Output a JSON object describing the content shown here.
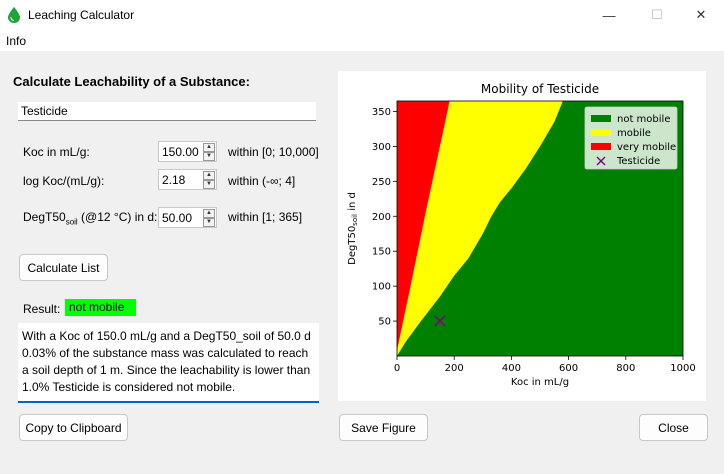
{
  "window": {
    "title": "Leaching Calculator",
    "min_glyph": "—",
    "max_glyph": "☐",
    "close_glyph": "✕"
  },
  "menu": {
    "info": "Info"
  },
  "form": {
    "heading": "Calculate Leachability of a Substance:",
    "substance_name": "Testicide",
    "koc": {
      "label": "Koc in mL/g:",
      "value": "150.00",
      "range": "within [0; 10,000]"
    },
    "log_koc": {
      "label": "log Koc/(mL/g):",
      "value": "2.18",
      "range": "within (-∞; 4]"
    },
    "degt50": {
      "label_main": "DegT50",
      "label_sub": "soil",
      "label_rest": " (@12 °C) in d:",
      "value": "50.00",
      "range": "within [1; 365]"
    },
    "calculate_list_label": "Calculate List"
  },
  "result": {
    "label": "Result:",
    "classification": "not mobile",
    "classification_color": "#00ff00",
    "text": "With a Koc of 150.0 mL/g and a DegT50_soil of 50.0 d 0.03% of the substance mass was calculated to reach a soil depth of 1 m. Since the leachability is lower than 1.0% Testicide is considered not mobile."
  },
  "buttons": {
    "copy": "Copy to Clipboard",
    "save_figure": "Save Figure",
    "close": "Close"
  },
  "chart_data": {
    "type": "area",
    "title": "Mobility of Testicide",
    "xlabel": "Koc in mL/g",
    "ylabel_main": "DegT50",
    "ylabel_sub": "soil",
    "ylabel_rest": " in d",
    "xlim": [
      0,
      1000
    ],
    "ylim": [
      0,
      365
    ],
    "xticks": [
      0,
      200,
      400,
      600,
      800,
      1000
    ],
    "yticks": [
      50,
      100,
      150,
      200,
      250,
      300,
      350
    ],
    "regions": [
      {
        "name": "not mobile",
        "color": "#008000"
      },
      {
        "name": "mobile",
        "color": "#ffff00"
      },
      {
        "name": "very mobile",
        "color": "#ff0000"
      }
    ],
    "boundary_very_mobile": [
      [
        0,
        8
      ],
      [
        50,
        105
      ],
      [
        100,
        205
      ],
      [
        150,
        300
      ],
      [
        184,
        365
      ]
    ],
    "boundary_mobile": [
      [
        0,
        0
      ],
      [
        30,
        20
      ],
      [
        80,
        48
      ],
      [
        150,
        85
      ],
      [
        200,
        115
      ],
      [
        250,
        140
      ],
      [
        300,
        175
      ],
      [
        330,
        200
      ],
      [
        360,
        220
      ],
      [
        400,
        240
      ],
      [
        450,
        268
      ],
      [
        500,
        300
      ],
      [
        550,
        335
      ],
      [
        580,
        365
      ]
    ],
    "point": {
      "name": "Testicide",
      "x": 150,
      "y": 50,
      "color": "#800080"
    },
    "legend_position": "top-right"
  }
}
